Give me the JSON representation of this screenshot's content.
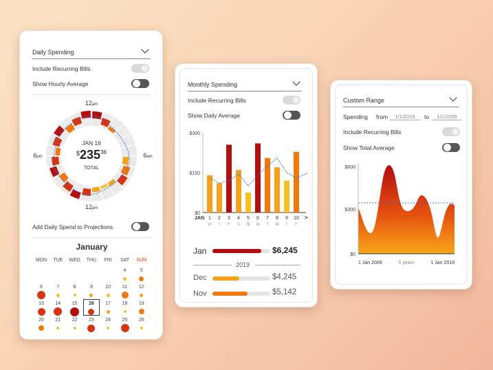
{
  "colors": {
    "dark_red": "#b30f0f",
    "red": "#d8320f",
    "orange": "#f2780a",
    "amber": "#f7a01a",
    "yellow": "#f8c01e",
    "avg_line": "#3a6fd8"
  },
  "card1": {
    "dropdown": "Daily Spending",
    "toggle1_label": "Include Recurring Bills",
    "toggle2_label": "Show Hourly Average",
    "radial": {
      "date": "JAN 16",
      "currency": "$",
      "amount": "235",
      "cents": "36",
      "total_label": "TOTAL",
      "label_top_num": "12",
      "label_top_unit": "am",
      "label_right_num": "6",
      "label_right_unit": "am",
      "label_bottom_num": "12",
      "label_bottom_unit": "pm",
      "label_left_num": "6",
      "label_left_unit": "pm"
    },
    "projection_label": "Add Daily Spend to Projections",
    "month": "January",
    "weekdays": [
      "MON",
      "TUE",
      "WED",
      "THU",
      "FRI",
      "SAT",
      "SUN"
    ],
    "calendar_rows": [
      [
        "",
        "",
        "",
        "",
        "",
        "4",
        "5"
      ],
      [
        "6",
        "7",
        "8",
        "9",
        "10",
        "11",
        "12"
      ],
      [
        "13",
        "14",
        "15",
        "16",
        "17",
        "18",
        "19"
      ],
      [
        "20",
        "21",
        "22",
        "23",
        "24",
        "25",
        "26"
      ]
    ]
  },
  "card2": {
    "dropdown": "Monthly Spending",
    "toggle1_label": "Include Recurring Bills",
    "toggle2_label": "Show Daily Average",
    "chart_data": {
      "type": "bar",
      "y_ticks": [
        "$300",
        "$150",
        "$0"
      ],
      "ylim": [
        0,
        300
      ],
      "month_label": "JAN",
      "next_label": ">",
      "categories": [
        "1",
        "2",
        "3",
        "4",
        "5",
        "6",
        "7",
        "8",
        "9",
        "10"
      ],
      "weekday_labels": [
        "W",
        "T",
        "F",
        "S",
        "S",
        "M",
        "T",
        "W",
        "T",
        "F"
      ],
      "values": [
        140,
        110,
        255,
        160,
        75,
        260,
        205,
        170,
        120,
        228
      ],
      "avg_line": [
        130,
        110,
        120,
        145,
        100,
        140,
        175,
        205,
        150,
        130
      ]
    },
    "jan_label": "Jan",
    "jan_value": "$6,245",
    "year_label": "2019",
    "dec_label": "Dec",
    "dec_value": "$4,245",
    "nov_label": "Nov",
    "nov_value": "$5,142"
  },
  "card3": {
    "dropdown": "Custom Range",
    "spending_label": "Spending",
    "from_label": "from",
    "from_value": "1/1/2019",
    "to_label": "to",
    "to_value": "1/1/2009",
    "toggle1_label": "Include Recurring Bills",
    "toggle2_label": "Show Total Average",
    "chart_data": {
      "type": "area",
      "y_ticks": [
        "$600",
        "$300",
        "$0"
      ],
      "ylim": [
        0,
        600
      ],
      "x_start": "1 Jan 2009",
      "x_mid": "5 years",
      "x_end": "1 Jan 2019",
      "average": 330
    }
  }
}
